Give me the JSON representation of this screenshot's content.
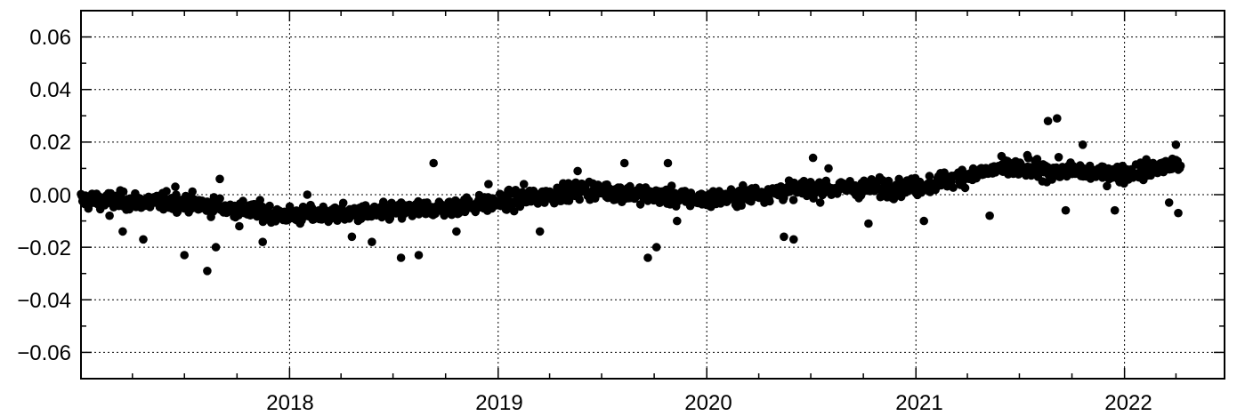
{
  "chart_data": {
    "type": "scatter",
    "title": "",
    "xlabel": "",
    "ylabel": "",
    "xlim": [
      "2017-01-01",
      "2022-06-25"
    ],
    "ylim": [
      -0.07,
      0.07
    ],
    "x_tick_labels": [
      "2018",
      "2019",
      "2020",
      "2021",
      "2022"
    ],
    "y_tick_labels": [
      "0.06",
      "0.04",
      "0.02",
      "0.00",
      "−0.02",
      "−0.04",
      "−0.06"
    ],
    "grid": true,
    "marker_color": "#000000",
    "series": [
      {
        "points": [
          {
            "x": "2017-01-15",
            "y": -0.004
          },
          {
            "x": "2017-02-20",
            "y": -0.008
          },
          {
            "x": "2017-03-15",
            "y": -0.014
          },
          {
            "x": "2017-04-20",
            "y": -0.017
          },
          {
            "x": "2017-05-10",
            "y": -0.003
          },
          {
            "x": "2017-06-15",
            "y": 0.003
          },
          {
            "x": "2017-07-01",
            "y": -0.023
          },
          {
            "x": "2017-08-10",
            "y": -0.029
          },
          {
            "x": "2017-08-25",
            "y": -0.02
          },
          {
            "x": "2017-09-01",
            "y": 0.006
          },
          {
            "x": "2017-10-05",
            "y": -0.012
          },
          {
            "x": "2017-11-15",
            "y": -0.018
          },
          {
            "x": "2017-12-20",
            "y": -0.008
          },
          {
            "x": "2018-02-01",
            "y": 0.0
          },
          {
            "x": "2018-04-20",
            "y": -0.016
          },
          {
            "x": "2018-05-25",
            "y": -0.018
          },
          {
            "x": "2018-07-15",
            "y": -0.024
          },
          {
            "x": "2018-08-15",
            "y": -0.023
          },
          {
            "x": "2018-09-10",
            "y": 0.012
          },
          {
            "x": "2018-10-20",
            "y": -0.014
          },
          {
            "x": "2018-12-15",
            "y": 0.004
          },
          {
            "x": "2019-02-15",
            "y": 0.004
          },
          {
            "x": "2019-03-15",
            "y": -0.014
          },
          {
            "x": "2019-05-20",
            "y": 0.009
          },
          {
            "x": "2019-08-10",
            "y": 0.012
          },
          {
            "x": "2019-09-20",
            "y": -0.024
          },
          {
            "x": "2019-10-05",
            "y": -0.02
          },
          {
            "x": "2019-10-25",
            "y": 0.012
          },
          {
            "x": "2019-11-10",
            "y": -0.01
          },
          {
            "x": "2020-01-20",
            "y": -0.002
          },
          {
            "x": "2020-05-15",
            "y": -0.016
          },
          {
            "x": "2020-06-01",
            "y": -0.017
          },
          {
            "x": "2020-07-05",
            "y": 0.014
          },
          {
            "x": "2020-08-01",
            "y": 0.01
          },
          {
            "x": "2020-10-10",
            "y": -0.011
          },
          {
            "x": "2021-01-15",
            "y": -0.01
          },
          {
            "x": "2021-05-10",
            "y": -0.008
          },
          {
            "x": "2021-07-15",
            "y": 0.015
          },
          {
            "x": "2021-08-20",
            "y": 0.028
          },
          {
            "x": "2021-09-05",
            "y": 0.029
          },
          {
            "x": "2021-09-20",
            "y": -0.006
          },
          {
            "x": "2021-10-20",
            "y": 0.019
          },
          {
            "x": "2021-12-15",
            "y": -0.006
          },
          {
            "x": "2022-02-01",
            "y": 0.01
          },
          {
            "x": "2022-03-20",
            "y": -0.003
          },
          {
            "x": "2022-04-01",
            "y": 0.019
          },
          {
            "x": "2022-04-05",
            "y": -0.007
          }
        ],
        "trend": [
          {
            "x": "2017-01-01",
            "y": -0.002
          },
          {
            "x": "2017-07-01",
            "y": -0.003
          },
          {
            "x": "2018-01-01",
            "y": -0.008
          },
          {
            "x": "2018-06-01",
            "y": -0.007
          },
          {
            "x": "2019-01-01",
            "y": -0.003
          },
          {
            "x": "2019-06-01",
            "y": 0.002
          },
          {
            "x": "2020-01-01",
            "y": -0.002
          },
          {
            "x": "2020-06-01",
            "y": 0.002
          },
          {
            "x": "2021-01-01",
            "y": 0.003
          },
          {
            "x": "2021-06-01",
            "y": 0.01
          },
          {
            "x": "2022-01-01",
            "y": 0.008
          },
          {
            "x": "2022-04-10",
            "y": 0.012
          }
        ]
      }
    ]
  }
}
